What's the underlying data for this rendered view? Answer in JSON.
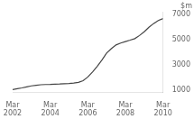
{
  "chart_data": {
    "type": "line",
    "ylabel": "$m",
    "x": [
      0,
      1,
      2,
      3,
      4,
      5,
      6,
      7,
      8,
      9,
      10,
      11,
      12,
      13,
      14,
      15,
      16,
      17,
      18,
      19,
      20,
      21,
      22,
      23,
      24,
      25,
      26,
      27,
      28,
      29,
      30,
      31,
      32
    ],
    "values": [
      1050,
      1120,
      1180,
      1260,
      1340,
      1390,
      1430,
      1450,
      1460,
      1480,
      1490,
      1510,
      1530,
      1560,
      1620,
      1750,
      2050,
      2450,
      2900,
      3400,
      3950,
      4300,
      4600,
      4750,
      4870,
      4980,
      5100,
      5350,
      5650,
      6000,
      6300,
      6550,
      6700
    ],
    "color": "#444444",
    "xlim": [
      0,
      32
    ],
    "xticks": [
      {
        "value": 0,
        "label": "Mar\n2002"
      },
      {
        "value": 8,
        "label": "Mar\n2004"
      },
      {
        "value": 16,
        "label": "Mar\n2006"
      },
      {
        "value": 24,
        "label": "Mar\n2008"
      },
      {
        "value": 32,
        "label": "Mar\n2010"
      }
    ],
    "ylim": [
      800,
      7200
    ],
    "yticks": [
      1000,
      3000,
      5000,
      7000
    ],
    "grid": false
  }
}
